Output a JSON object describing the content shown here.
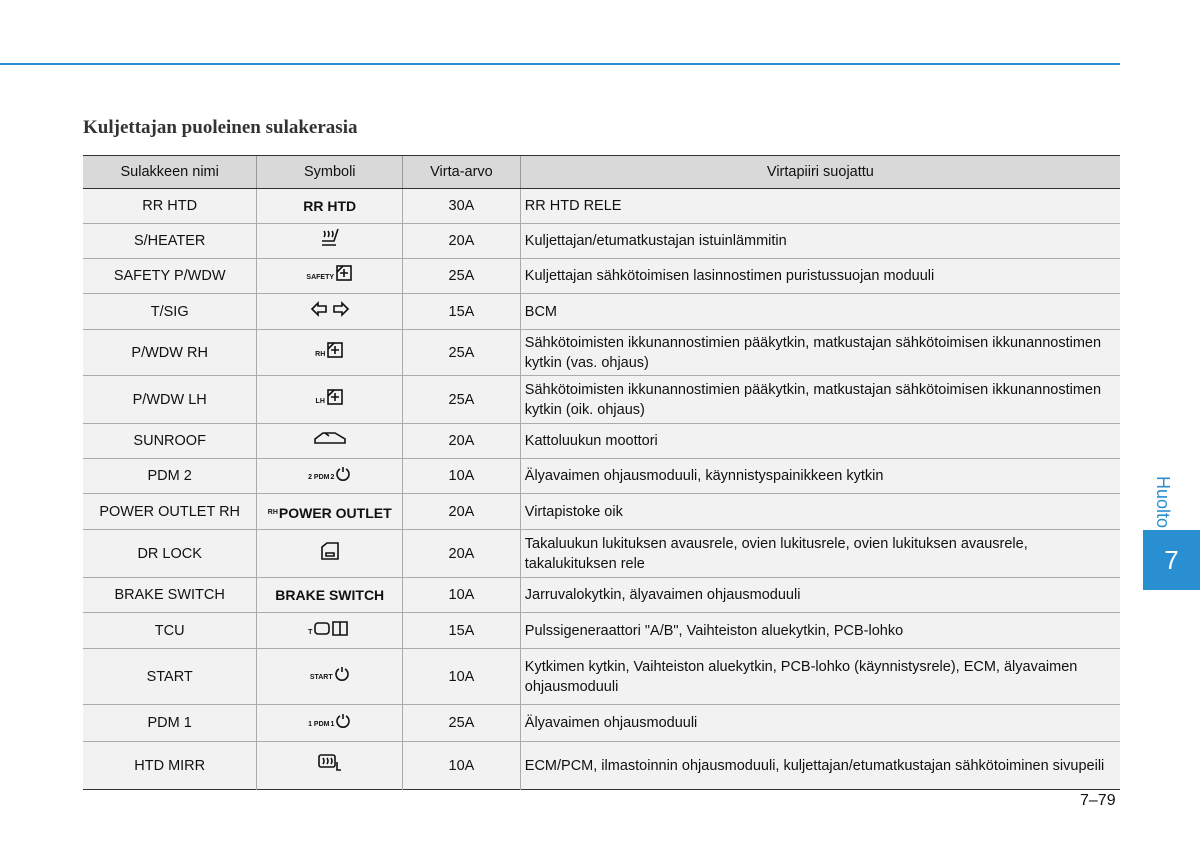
{
  "header": {
    "title": "Kuljettajan puoleinen sulakerasia"
  },
  "table": {
    "columns": [
      "Sulakkeen nimi",
      "Symboli",
      "Virta-arvo",
      "Virtapiiri suojattu"
    ],
    "rows": [
      {
        "name": "RR HTD",
        "symbol": [
          "RR HTD"
        ],
        "rating": "30A",
        "circuit": "RR HTD RELE"
      },
      {
        "name": "S/HEATER",
        "rating": "20A",
        "circuit": "Kuljettajan/etumatkustajan istuinlämmitin"
      },
      {
        "name": "SAFETY P/WDW",
        "symbol": [
          "SAFETY"
        ],
        "rating": "25A",
        "circuit": "Kuljettajan sähkötoimisen lasinnostimen puristussuojan moduuli"
      },
      {
        "name": "T/SIG",
        "rating": "15A",
        "circuit": "BCM"
      },
      {
        "name": "P/WDW RH",
        "symbol": [
          "RH"
        ],
        "rating": "25A",
        "circuit": "Sähkötoimisten ikkunannostimien pääkytkin, matkustajan sähkötoimisen ikkunannostimen kytkin (vas. ohjaus)"
      },
      {
        "name": "P/WDW LH",
        "symbol": [
          "LH"
        ],
        "rating": "25A",
        "circuit": "Sähkötoimisten ikkunannostimien pääkytkin, matkustajan sähkötoimisen ikkunannostimen kytkin (oik. ohjaus)"
      },
      {
        "name": "SUNROOF",
        "rating": "20A",
        "circuit": "Kattoluukun moottori"
      },
      {
        "name": "PDM 2",
        "symbol": [
          "2 PDM",
          "2"
        ],
        "rating": "10A",
        "circuit": "Älyavaimen ohjausmoduuli, käynnistyspainikkeen kytkin"
      },
      {
        "name": "POWER OUTLET RH",
        "symbol": [
          "RH",
          "POWER OUTLET"
        ],
        "rating": "20A",
        "circuit": "Virtapistoke oik"
      },
      {
        "name": "DR LOCK",
        "rating": "20A",
        "circuit": "Takaluukun lukituksen avausrele, ovien lukitusrele, ovien lukituksen avausrele, takalukituksen rele"
      },
      {
        "name": "BRAKE SWITCH",
        "symbol": [
          "BRAKE SWITCH"
        ],
        "rating": "10A",
        "circuit": "Jarruvalokytkin, älyavaimen ohjausmoduuli"
      },
      {
        "name": "TCU",
        "symbol": [
          "T"
        ],
        "rating": "15A",
        "circuit": "Pulssigeneraattori \"A/B\", Vaihteiston aluekytkin, PCB-lohko"
      },
      {
        "name": "START",
        "symbol": [
          "START"
        ],
        "rating": "10A",
        "circuit": "Kytkimen kytkin, Vaihteiston aluekytkin, PCB-lohko (käynnistysrele), ECM, älyavaimen ohjausmoduuli"
      },
      {
        "name": "PDM 1",
        "symbol": [
          "1 PDM",
          "1"
        ],
        "rating": "25A",
        "circuit": "Älyavaimen ohjausmoduuli"
      },
      {
        "name": "HTD MIRR",
        "rating": "10A",
        "circuit": "ECM/PCM, ilmastoinnin ohjausmoduuli, kuljettajan/etumatkustajan sähkötoiminen sivupeili"
      }
    ]
  },
  "side_tab": {
    "section": "Huolto",
    "chapter": "7"
  },
  "footer": {
    "page": "7–79"
  }
}
